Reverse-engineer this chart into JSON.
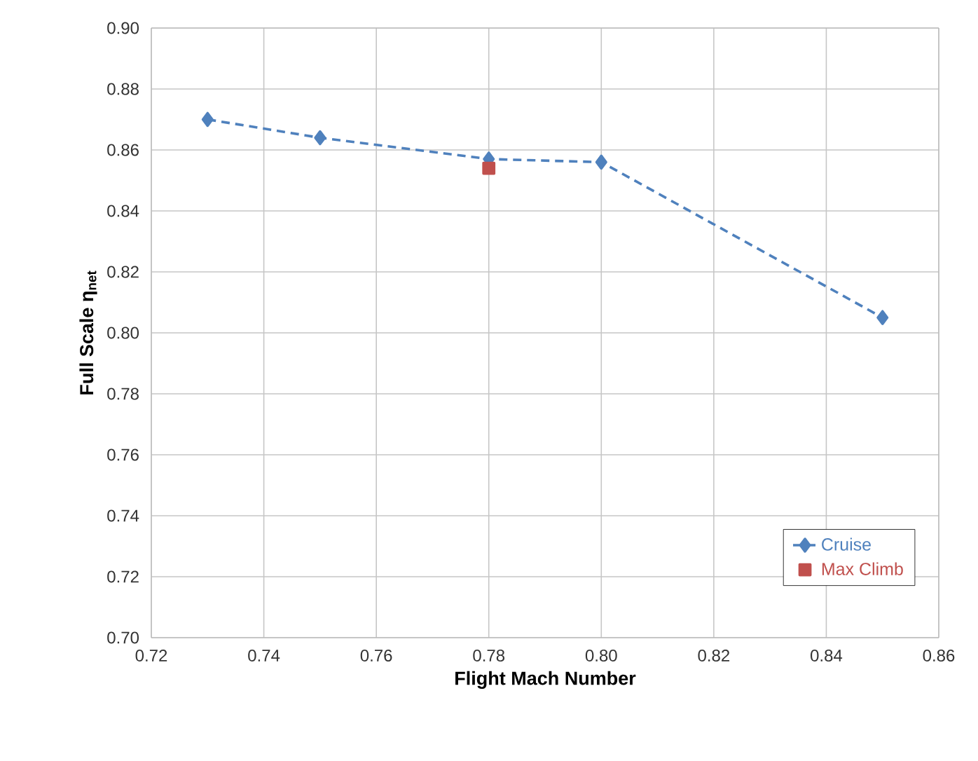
{
  "chart_data": {
    "type": "line",
    "xlabel": "Flight Mach Number",
    "ylabel": "Full Scale η$_{net}$",
    "xlim": [
      0.72,
      0.86
    ],
    "ylim": [
      0.7,
      0.9
    ],
    "xticks": [
      0.72,
      0.74,
      0.76,
      0.78,
      {
        "value": 0.8,
        "label": "0.80"
      },
      0.82,
      0.84,
      0.86
    ],
    "yticks": [
      {
        "value": 0.7,
        "label": "0.70"
      },
      0.72,
      0.74,
      0.76,
      0.78,
      {
        "value": 0.8,
        "label": "0.80"
      },
      0.82,
      0.84,
      0.86,
      0.88,
      {
        "value": 0.9,
        "label": "0.90"
      }
    ],
    "grid": true,
    "legend": "bottom right",
    "series": [
      {
        "name": "Cruise",
        "color": "#4f81bd",
        "marker": "diamond",
        "line_style": "dashed",
        "x": [
          0.73,
          0.75,
          0.78,
          0.8,
          0.85
        ],
        "values": [
          0.87,
          0.864,
          0.857,
          0.856,
          0.805
        ]
      },
      {
        "name": "Max Climb",
        "type": "scatter",
        "color": "#c0504d",
        "marker": "square",
        "x": [
          0.78
        ],
        "values": [
          0.854
        ]
      }
    ]
  }
}
